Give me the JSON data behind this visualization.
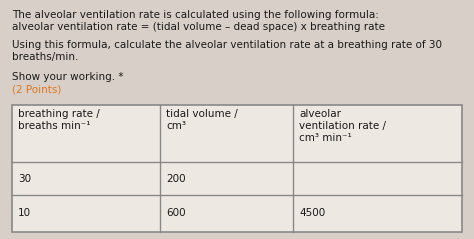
{
  "bg_color": "#d8d0c8",
  "text_color": "#1a1a1a",
  "orange_color": "#e07820",
  "para1_line1": "The alveolar ventilation rate is calculated using the following formula:",
  "para1_line2": "alveolar ventilation rate = (tidal volume – dead space) x breathing rate",
  "para2_line1": "Using this formula, calculate the alveolar ventilation rate at a breathing rate of 30",
  "para2_line2": "breaths/min.",
  "show_working": "Show your working. *",
  "points": "(2 Points)",
  "col1_h1": "breathing rate /",
  "col1_h2": "breaths min⁻¹",
  "col2_h1": "tidal volume /",
  "col2_h2": "cm³",
  "col3_h1": "alveolar",
  "col3_h2": "ventilation rate /",
  "col3_h3": "cm³ min⁻¹",
  "row1": [
    "30",
    "200",
    ""
  ],
  "row2": [
    "10",
    "600",
    "4500"
  ],
  "font_size": 7.5,
  "table_font_size": 7.5
}
